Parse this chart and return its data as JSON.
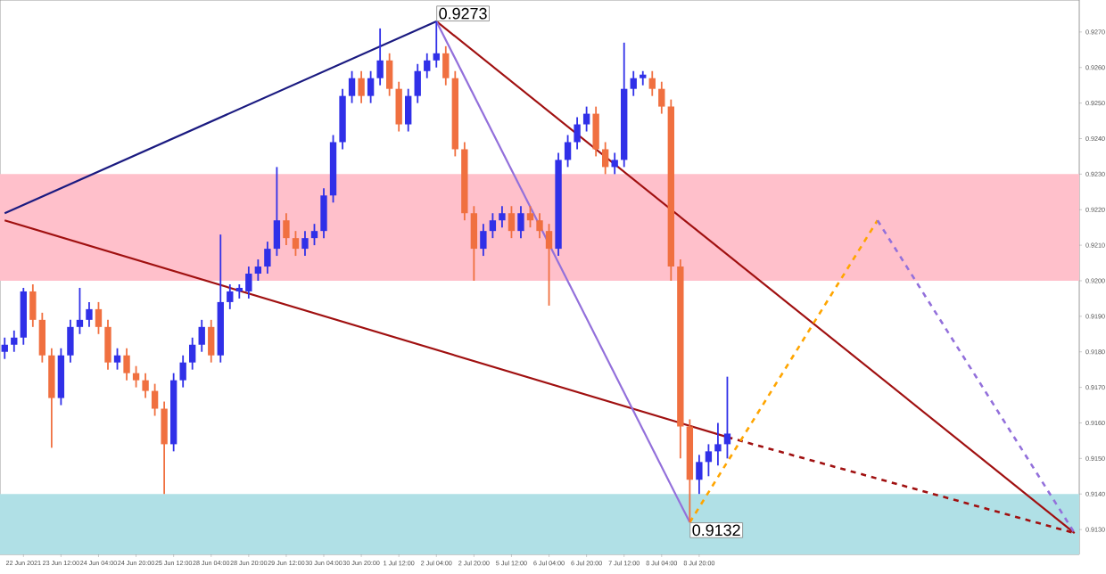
{
  "chart_data": {
    "type": "candlestick",
    "ylim": [
      0.9123,
      0.9279
    ],
    "categories": [
      null,
      null,
      "22 Jun 2021",
      null,
      null,
      null,
      "23 Jun 12:00",
      null,
      null,
      null,
      "24 Jun 04:00",
      null,
      null,
      null,
      "24 Jun 20:00",
      null,
      null,
      null,
      "25 Jun 12:00",
      null,
      null,
      null,
      "28 Jun 04:00",
      null,
      null,
      null,
      "28 Jun 20:00",
      null,
      null,
      null,
      "29 Jun 12:00",
      null,
      null,
      null,
      "30 Jun 04:00",
      null,
      null,
      null,
      "30 Jun 20:00",
      null,
      null,
      null,
      "1 Jul 12:00",
      null,
      null,
      null,
      "2 Jul 04:00",
      null,
      null,
      null,
      "2 Jul 20:00",
      null,
      null,
      null,
      "5 Jul 12:00",
      null,
      null,
      null,
      "6 Jul 04:00",
      null,
      null,
      null,
      "6 Jul 20:00",
      null,
      null,
      null,
      "7 Jul 12:00",
      null,
      null,
      null,
      "8 Jul 04:00",
      null,
      null,
      null,
      "8 Jul 20:00",
      null,
      null,
      null,
      null,
      null,
      null,
      null,
      null,
      null,
      null,
      null,
      null,
      null,
      null,
      null,
      null,
      null,
      null,
      null,
      null,
      null,
      null,
      null,
      null,
      null,
      null,
      null,
      null,
      null,
      null,
      null,
      null,
      null,
      null,
      null,
      null,
      null,
      null,
      null,
      null
    ],
    "yticks": [
      {
        "value": 0.913,
        "label": "0.9130"
      },
      {
        "value": 0.914,
        "label": "0.9140"
      },
      {
        "value": 0.915,
        "label": "0.9150"
      },
      {
        "value": 0.916,
        "label": "0.9160"
      },
      {
        "value": 0.917,
        "label": "0.9170"
      },
      {
        "value": 0.918,
        "label": "0.9180"
      },
      {
        "value": 0.919,
        "label": "0.9190"
      },
      {
        "value": 0.92,
        "label": "0.9200"
      },
      {
        "value": 0.921,
        "label": "0.9210"
      },
      {
        "value": 0.922,
        "label": "0.9220"
      },
      {
        "value": 0.923,
        "label": "0.9230"
      },
      {
        "value": 0.924,
        "label": "0.9240"
      },
      {
        "value": 0.925,
        "label": "0.9250"
      },
      {
        "value": 0.926,
        "label": "0.9260"
      },
      {
        "value": 0.927,
        "label": "0.9270"
      }
    ],
    "bands": [
      {
        "axis": "y",
        "from": 0.92,
        "to": 0.923,
        "color": "#ffc0cb"
      },
      {
        "axis": "y",
        "from": 0.9123,
        "to": 0.914,
        "color": "#b0e0e6"
      }
    ],
    "series": [
      {
        "colors": [
          "#3030e8",
          "#3030e8",
          "#3030e8",
          "#f07040",
          "#f07040",
          "#f07040",
          "#3030e8",
          "#3030e8",
          "#3030e8",
          "#3030e8",
          "#f07040",
          "#f07040",
          "#3030e8",
          "#f07040",
          "#f07040",
          "#f07040",
          "#f07040",
          "#f07040",
          "#3030e8",
          "#3030e8",
          "#3030e8",
          "#3030e8",
          "#f07040",
          "#3030e8",
          "#3030e8",
          "#3030e8",
          "#3030e8",
          "#3030e8",
          "#3030e8",
          "#3030e8",
          "#f07040",
          "#f07040",
          "#3030e8",
          "#3030e8",
          "#3030e8",
          "#3030e8",
          "#3030e8",
          "#3030e8",
          "#f07040",
          "#3030e8",
          "#3030e8",
          "#f07040",
          "#f07040",
          "#3030e8",
          "#3030e8",
          "#3030e8",
          "#3030e8",
          "#f07040",
          "#f07040",
          "#f07040",
          "#f07040",
          "#3030e8",
          "#3030e8",
          "#3030e8",
          "#f07040",
          "#3030e8",
          "#f07040",
          "#f07040",
          "#f07040",
          "#3030e8",
          "#3030e8",
          "#3030e8",
          "#3030e8",
          "#f07040",
          "#f07040",
          "#3030e8",
          "#3030e8",
          "#3030e8",
          "#3030e8",
          "#f07040",
          "#f07040",
          "#f07040",
          "#f07040",
          "#f07040",
          "#3030e8",
          "#3030e8",
          "#3030e8",
          "#3030e8",
          null,
          null,
          null,
          null,
          null,
          null,
          null,
          null,
          null,
          null,
          null,
          null,
          null,
          null,
          null,
          null,
          null,
          null,
          null,
          null,
          null,
          null,
          null,
          null,
          null,
          null,
          null,
          null,
          null,
          null,
          null,
          null,
          null,
          null,
          null,
          null,
          null
        ],
        "ohlc": [
          [
            0.918,
            0.9184,
            0.9178,
            0.9182
          ],
          [
            0.9182,
            0.9186,
            0.918,
            0.9184
          ],
          [
            0.9184,
            0.9198,
            0.9182,
            0.9197
          ],
          [
            0.9197,
            0.9199,
            0.9187,
            0.9189
          ],
          [
            0.9189,
            0.9191,
            0.9177,
            0.9179
          ],
          [
            0.9179,
            0.9181,
            0.9153,
            0.9167
          ],
          [
            0.9167,
            0.9181,
            0.9165,
            0.9179
          ],
          [
            0.9179,
            0.9189,
            0.9177,
            0.9187
          ],
          [
            0.9187,
            0.9198,
            0.9185,
            0.9189
          ],
          [
            0.9189,
            0.9194,
            0.9187,
            0.9192
          ],
          [
            0.9192,
            0.9194,
            0.9185,
            0.9187
          ],
          [
            0.9187,
            0.9189,
            0.9175,
            0.9177
          ],
          [
            0.9177,
            0.9181,
            0.9175,
            0.9179
          ],
          [
            0.9179,
            0.9181,
            0.9172,
            0.9174
          ],
          [
            0.9174,
            0.9176,
            0.917,
            0.9172
          ],
          [
            0.9172,
            0.9174,
            0.9167,
            0.9169
          ],
          [
            0.9169,
            0.9171,
            0.9162,
            0.9164
          ],
          [
            0.9164,
            0.9166,
            0.914,
            0.9154
          ],
          [
            0.9154,
            0.9174,
            0.9152,
            0.9172
          ],
          [
            0.9172,
            0.9179,
            0.917,
            0.9177
          ],
          [
            0.9177,
            0.9184,
            0.9175,
            0.9182
          ],
          [
            0.9182,
            0.9189,
            0.918,
            0.9187
          ],
          [
            0.9187,
            0.9189,
            0.9177,
            0.9179
          ],
          [
            0.9179,
            0.9213,
            0.9177,
            0.9194
          ],
          [
            0.9194,
            0.9199,
            0.9192,
            0.9197
          ],
          [
            0.9197,
            0.9199,
            0.9195,
            0.9198
          ],
          [
            0.9197,
            0.9204,
            0.9195,
            0.9202
          ],
          [
            0.9202,
            0.9206,
            0.92,
            0.9204
          ],
          [
            0.9204,
            0.9211,
            0.9202,
            0.9209
          ],
          [
            0.9209,
            0.9232,
            0.9207,
            0.9217
          ],
          [
            0.9217,
            0.9219,
            0.921,
            0.9212
          ],
          [
            0.9212,
            0.9214,
            0.9207,
            0.9209
          ],
          [
            0.9209,
            0.9214,
            0.9207,
            0.9212
          ],
          [
            0.9212,
            0.9216,
            0.921,
            0.9214
          ],
          [
            0.9214,
            0.9226,
            0.9212,
            0.9224
          ],
          [
            0.9224,
            0.9241,
            0.9222,
            0.9239
          ],
          [
            0.9239,
            0.9254,
            0.9237,
            0.9252
          ],
          [
            0.9252,
            0.9259,
            0.925,
            0.9257
          ],
          [
            0.9257,
            0.9259,
            0.925,
            0.9252
          ],
          [
            0.9252,
            0.9259,
            0.925,
            0.9257
          ],
          [
            0.9257,
            0.9271,
            0.9255,
            0.9262
          ],
          [
            0.9262,
            0.9264,
            0.9252,
            0.9254
          ],
          [
            0.9254,
            0.9256,
            0.9242,
            0.9244
          ],
          [
            0.9244,
            0.9254,
            0.9242,
            0.9252
          ],
          [
            0.9252,
            0.9261,
            0.925,
            0.9259
          ],
          [
            0.9259,
            0.9264,
            0.9257,
            0.9262
          ],
          [
            0.9262,
            0.9273,
            0.926,
            0.9264
          ],
          [
            0.9264,
            0.9266,
            0.9255,
            0.9257
          ],
          [
            0.9257,
            0.9259,
            0.9235,
            0.9237
          ],
          [
            0.9237,
            0.9239,
            0.9217,
            0.9219
          ],
          [
            0.9219,
            0.9221,
            0.92,
            0.9209
          ],
          [
            0.9209,
            0.9216,
            0.9207,
            0.9214
          ],
          [
            0.9214,
            0.9219,
            0.9212,
            0.9217
          ],
          [
            0.9217,
            0.9221,
            0.9215,
            0.9219
          ],
          [
            0.9219,
            0.9221,
            0.9212,
            0.9214
          ],
          [
            0.9214,
            0.9221,
            0.9212,
            0.9219
          ],
          [
            0.9219,
            0.9221,
            0.9215,
            0.9217
          ],
          [
            0.9217,
            0.9219,
            0.9212,
            0.9214
          ],
          [
            0.9214,
            0.9216,
            0.9193,
            0.9209
          ],
          [
            0.9209,
            0.9236,
            0.9207,
            0.9234
          ],
          [
            0.9234,
            0.9241,
            0.9232,
            0.9239
          ],
          [
            0.9239,
            0.9246,
            0.9237,
            0.9244
          ],
          [
            0.9244,
            0.9249,
            0.9242,
            0.9247
          ],
          [
            0.9247,
            0.9249,
            0.9235,
            0.9237
          ],
          [
            0.9237,
            0.9239,
            0.923,
            0.9232
          ],
          [
            0.9232,
            0.9236,
            0.923,
            0.9234
          ],
          [
            0.9234,
            0.9267,
            0.9232,
            0.9254
          ],
          [
            0.9254,
            0.9259,
            0.9252,
            0.9257
          ],
          [
            0.9257,
            0.9259,
            0.9255,
            0.9258
          ],
          [
            0.9257,
            0.9259,
            0.9252,
            0.9254
          ],
          [
            0.9254,
            0.9256,
            0.9247,
            0.9249
          ],
          [
            0.9249,
            0.9251,
            0.92,
            0.9204
          ],
          [
            0.9204,
            0.9206,
            0.915,
            0.9159
          ],
          [
            0.9159,
            0.9161,
            0.9132,
            0.9144
          ],
          [
            0.9144,
            0.9151,
            0.914,
            0.9149
          ],
          [
            0.9149,
            0.9154,
            0.9145,
            0.9152
          ],
          [
            0.9152,
            0.916,
            0.9148,
            0.9154
          ],
          [
            0.9154,
            0.9173,
            0.915,
            0.9157
          ],
          null,
          null,
          null,
          null,
          null,
          null,
          null,
          null,
          null,
          null,
          null,
          null,
          null,
          null,
          null,
          null,
          null,
          null,
          null,
          null,
          null,
          null,
          null,
          null,
          null,
          null,
          null,
          null,
          null,
          null,
          null,
          null,
          null,
          null,
          null,
          null,
          null
        ]
      },
      {
        "type": "line",
        "color": "#1a1a80",
        "line_style": "solid",
        "values": [
          0.9219,
          null,
          null,
          null,
          null,
          null,
          null,
          null,
          null,
          null,
          null,
          null,
          null,
          null,
          null,
          null,
          null,
          null,
          null,
          null,
          null,
          null,
          null,
          null,
          null,
          null,
          null,
          null,
          null,
          null,
          null,
          null,
          null,
          null,
          null,
          null,
          null,
          null,
          null,
          null,
          null,
          null,
          null,
          null,
          null,
          null,
          0.9273,
          null,
          null,
          null,
          null,
          null,
          null,
          null,
          null,
          null,
          null,
          null,
          null,
          null,
          null,
          null,
          null,
          null,
          null,
          null,
          null,
          null,
          null,
          null,
          null,
          null,
          null,
          null,
          null,
          null,
          null,
          null,
          null,
          null,
          null,
          null,
          null,
          null,
          null,
          null,
          null,
          null,
          null,
          null,
          null,
          null,
          null,
          null,
          null,
          null,
          null,
          null,
          null,
          null,
          null,
          null,
          null,
          null,
          null,
          null,
          null,
          null,
          null,
          null,
          null,
          null,
          null,
          null,
          null
        ]
      },
      {
        "type": "line",
        "color": "#a01010",
        "line_style": "solid",
        "values": [
          0.9217,
          null,
          null,
          null,
          null,
          null,
          null,
          null,
          null,
          null,
          null,
          null,
          null,
          null,
          null,
          null,
          null,
          null,
          null,
          null,
          null,
          null,
          null,
          null,
          null,
          null,
          null,
          null,
          null,
          null,
          null,
          null,
          null,
          null,
          null,
          null,
          null,
          null,
          null,
          null,
          null,
          null,
          null,
          null,
          null,
          null,
          null,
          null,
          null,
          null,
          null,
          null,
          null,
          null,
          null,
          null,
          null,
          null,
          null,
          null,
          null,
          null,
          null,
          null,
          null,
          null,
          null,
          null,
          null,
          null,
          null,
          null,
          null,
          null,
          null,
          null,
          null,
          0.9156,
          null,
          null,
          null,
          null,
          null,
          null,
          null,
          null,
          null,
          null,
          null,
          null,
          null,
          null,
          null,
          null,
          null,
          null,
          null,
          null,
          null,
          null,
          null,
          null,
          null,
          null,
          null,
          null,
          null,
          null,
          null,
          null,
          null,
          null,
          null,
          null,
          null
        ]
      },
      {
        "type": "line",
        "color": "#a01010",
        "line_style": "dashed",
        "values": [
          null,
          null,
          null,
          null,
          null,
          null,
          null,
          null,
          null,
          null,
          null,
          null,
          null,
          null,
          null,
          null,
          null,
          null,
          null,
          null,
          null,
          null,
          null,
          null,
          null,
          null,
          null,
          null,
          null,
          null,
          null,
          null,
          null,
          null,
          null,
          null,
          null,
          null,
          null,
          null,
          null,
          null,
          null,
          null,
          null,
          null,
          null,
          null,
          null,
          null,
          null,
          null,
          null,
          null,
          null,
          null,
          null,
          null,
          null,
          null,
          null,
          null,
          null,
          null,
          null,
          null,
          null,
          null,
          null,
          null,
          null,
          null,
          null,
          null,
          null,
          null,
          null,
          0.9156,
          null,
          null,
          null,
          null,
          null,
          null,
          null,
          null,
          null,
          null,
          null,
          null,
          null,
          null,
          null,
          null,
          null,
          null,
          null,
          null,
          null,
          null,
          null,
          null,
          null,
          null,
          null,
          null,
          null,
          null,
          null,
          null,
          null,
          null,
          null,
          null,
          0.9129
        ]
      },
      {
        "type": "line",
        "color": "#a01010",
        "line_style": "solid",
        "values": [
          null,
          null,
          null,
          null,
          null,
          null,
          null,
          null,
          null,
          null,
          null,
          null,
          null,
          null,
          null,
          null,
          null,
          null,
          null,
          null,
          null,
          null,
          null,
          null,
          null,
          null,
          null,
          null,
          null,
          null,
          null,
          null,
          null,
          null,
          null,
          null,
          null,
          null,
          null,
          null,
          null,
          null,
          null,
          null,
          null,
          null,
          0.9273,
          null,
          null,
          null,
          null,
          null,
          null,
          null,
          null,
          null,
          null,
          null,
          null,
          null,
          null,
          null,
          null,
          null,
          null,
          null,
          null,
          null,
          null,
          null,
          null,
          null,
          null,
          null,
          null,
          null,
          null,
          null,
          null,
          null,
          null,
          null,
          null,
          null,
          null,
          null,
          null,
          null,
          null,
          null,
          null,
          null,
          null,
          null,
          null,
          null,
          null,
          null,
          null,
          null,
          null,
          null,
          null,
          null,
          null,
          null,
          null,
          null,
          null,
          null,
          null,
          null,
          null,
          null,
          0.9129
        ]
      },
      {
        "type": "line",
        "color": "#9370db",
        "line_style": "solid",
        "values": [
          null,
          null,
          null,
          null,
          null,
          null,
          null,
          null,
          null,
          null,
          null,
          null,
          null,
          null,
          null,
          null,
          null,
          null,
          null,
          null,
          null,
          null,
          null,
          null,
          null,
          null,
          null,
          null,
          null,
          null,
          null,
          null,
          null,
          null,
          null,
          null,
          null,
          null,
          null,
          null,
          null,
          null,
          null,
          null,
          null,
          null,
          0.9273,
          null,
          null,
          null,
          null,
          null,
          null,
          null,
          null,
          null,
          null,
          null,
          null,
          null,
          null,
          null,
          null,
          null,
          null,
          null,
          null,
          null,
          null,
          null,
          null,
          null,
          null,
          0.9132,
          null,
          null,
          null,
          null,
          null,
          null,
          null,
          null,
          null,
          null,
          null,
          null,
          null,
          null,
          null,
          null,
          null,
          null,
          null,
          null,
          null,
          null,
          null,
          null,
          null,
          null,
          null,
          null,
          null,
          null,
          null,
          null,
          null,
          null,
          null,
          null,
          null,
          null,
          null,
          null,
          null
        ]
      },
      {
        "type": "line",
        "color": "#ffa500",
        "line_style": "dashed",
        "values": [
          null,
          null,
          null,
          null,
          null,
          null,
          null,
          null,
          null,
          null,
          null,
          null,
          null,
          null,
          null,
          null,
          null,
          null,
          null,
          null,
          null,
          null,
          null,
          null,
          null,
          null,
          null,
          null,
          null,
          null,
          null,
          null,
          null,
          null,
          null,
          null,
          null,
          null,
          null,
          null,
          null,
          null,
          null,
          null,
          null,
          null,
          null,
          null,
          null,
          null,
          null,
          null,
          null,
          null,
          null,
          null,
          null,
          null,
          null,
          null,
          null,
          null,
          null,
          null,
          null,
          null,
          null,
          null,
          null,
          null,
          null,
          null,
          null,
          0.9132,
          null,
          null,
          null,
          null,
          null,
          null,
          null,
          null,
          null,
          null,
          null,
          null,
          null,
          null,
          null,
          null,
          null,
          null,
          null,
          0.9217,
          null,
          null,
          null,
          null,
          null,
          null,
          null,
          null,
          null,
          null,
          null,
          null,
          null,
          null,
          null,
          null,
          null,
          null,
          null,
          null,
          null
        ]
      },
      {
        "type": "line",
        "color": "#9370db",
        "line_style": "dashed",
        "values": [
          null,
          null,
          null,
          null,
          null,
          null,
          null,
          null,
          null,
          null,
          null,
          null,
          null,
          null,
          null,
          null,
          null,
          null,
          null,
          null,
          null,
          null,
          null,
          null,
          null,
          null,
          null,
          null,
          null,
          null,
          null,
          null,
          null,
          null,
          null,
          null,
          null,
          null,
          null,
          null,
          null,
          null,
          null,
          null,
          null,
          null,
          null,
          null,
          null,
          null,
          null,
          null,
          null,
          null,
          null,
          null,
          null,
          null,
          null,
          null,
          null,
          null,
          null,
          null,
          null,
          null,
          null,
          null,
          null,
          null,
          null,
          null,
          null,
          null,
          null,
          null,
          null,
          null,
          null,
          null,
          null,
          null,
          null,
          null,
          null,
          null,
          null,
          null,
          null,
          null,
          null,
          null,
          null,
          0.9217,
          null,
          null,
          null,
          null,
          null,
          null,
          null,
          null,
          null,
          null,
          null,
          null,
          null,
          null,
          null,
          null,
          null,
          null,
          null,
          null,
          0.9129
        ]
      }
    ],
    "annotations": [
      "0.9273",
      "0.9132"
    ]
  }
}
